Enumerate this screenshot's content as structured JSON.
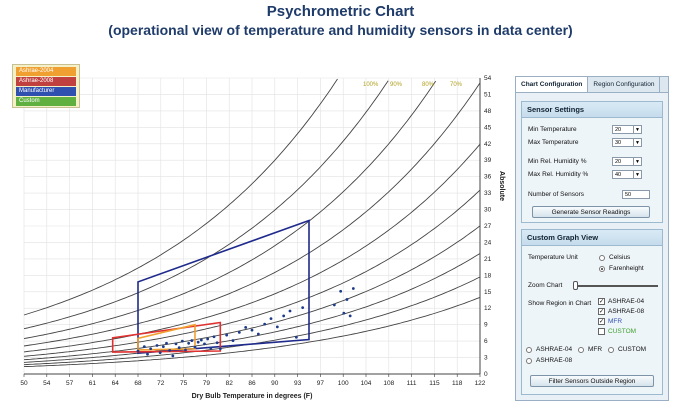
{
  "title": {
    "line1": "Psychrometric Chart",
    "line2": "(operational view of temperature and humidity sensors in data center)"
  },
  "legend": [
    {
      "label": "Ashrae-2004",
      "color": "#f0a030"
    },
    {
      "label": "Ashrae-2008",
      "color": "#c04040"
    },
    {
      "label": "Manufacturer",
      "color": "#3050b0"
    },
    {
      "label": "Custom",
      "color": "#60b040"
    }
  ],
  "chart_data": {
    "type": "scatter",
    "xlabel": "Dry Bulb Temperature in degrees (F)",
    "ylabel": "Absolute",
    "x_ticks": [
      "50",
      "54",
      "57",
      "61",
      "64",
      "68",
      "72",
      "75",
      "79",
      "82",
      "86",
      "90",
      "93",
      "97",
      "100",
      "104",
      "108",
      "111",
      "115",
      "118",
      "122"
    ],
    "y_ticks": [
      "0",
      "3",
      "6",
      "9",
      "12",
      "15",
      "18",
      "21",
      "24",
      "27",
      "30",
      "33",
      "36",
      "39",
      "42",
      "45",
      "48",
      "51",
      "54"
    ],
    "xlim": [
      50,
      122
    ],
    "ylim": [
      0,
      54
    ],
    "rh_labels": [
      "100%",
      "90%",
      "80%",
      "70%"
    ],
    "grid": true,
    "legend_position": "top-left",
    "regions": [
      {
        "name": "Manufacturer",
        "color": "#1e2a8c",
        "points": [
          [
            68,
            3.8
          ],
          [
            95,
            6.3
          ],
          [
            95,
            28
          ],
          [
            68,
            16.8
          ]
        ]
      },
      {
        "name": "Ashrae-2008",
        "color": "#e03030",
        "points": [
          [
            64,
            4.0
          ],
          [
            81,
            4.2
          ],
          [
            81,
            9.4
          ],
          [
            64,
            6.6
          ]
        ]
      },
      {
        "name": "Ashrae-2004",
        "color": "#f0a030",
        "points": [
          [
            68,
            4.4
          ],
          [
            77,
            4.6
          ],
          [
            77,
            9.0
          ],
          [
            68,
            6.5
          ]
        ]
      }
    ],
    "points": [
      [
        68,
        4.2
      ],
      [
        69,
        5.0
      ],
      [
        69.5,
        3.6
      ],
      [
        70,
        4.6
      ],
      [
        71,
        5.2
      ],
      [
        71.5,
        3.9
      ],
      [
        72,
        5.0
      ],
      [
        72.5,
        5.6
      ],
      [
        73,
        4.3
      ],
      [
        73.5,
        3.3
      ],
      [
        74,
        5.5
      ],
      [
        74.5,
        4.8
      ],
      [
        75,
        6.0
      ],
      [
        75.5,
        4.4
      ],
      [
        76,
        5.6
      ],
      [
        76.5,
        6.1
      ],
      [
        77,
        4.9
      ],
      [
        77.5,
        5.8
      ],
      [
        78,
        6.2
      ],
      [
        78.5,
        5.5
      ],
      [
        79,
        6.4
      ],
      [
        79.5,
        4.7
      ],
      [
        80,
        6.8
      ],
      [
        80.5,
        5.7
      ],
      [
        81,
        4.6
      ],
      [
        82,
        7.1
      ],
      [
        83,
        6.1
      ],
      [
        84,
        7.6
      ],
      [
        85,
        8.5
      ],
      [
        86,
        8.0
      ],
      [
        87,
        7.3
      ],
      [
        88,
        9.1
      ],
      [
        89,
        10.1
      ],
      [
        90,
        8.6
      ],
      [
        91,
        10.6
      ],
      [
        92,
        11.5
      ],
      [
        93,
        6.7
      ],
      [
        94,
        12.1
      ],
      [
        99,
        12.6
      ],
      [
        100,
        15.1
      ],
      [
        100.5,
        11.1
      ],
      [
        101,
        13.6
      ],
      [
        101.5,
        10.6
      ],
      [
        102,
        15.6
      ]
    ]
  },
  "tabs": [
    "Chart Configuration",
    "Region Configuration"
  ],
  "sensor_settings": {
    "heading": "Sensor Settings",
    "min_temp_label": "Min  Temperature",
    "min_temp_value": "20",
    "max_temp_label": "Max  Temperature",
    "max_temp_value": "30",
    "min_rh_label": "Min  Rel. Humidity %",
    "min_rh_value": "20",
    "max_rh_label": "Max  Rel. Humidity %",
    "max_rh_value": "40",
    "num_sensors_label": "Number of Sensors",
    "num_sensors_value": "50",
    "generate_button": "Generate Sensor Readings"
  },
  "custom_view": {
    "heading": "Custom Graph View",
    "temp_unit_label": "Temperature Unit",
    "celsius": "Celsius",
    "farenheight": "Farenheight",
    "zoom_label": "Zoom Chart",
    "show_region_label": "Show Region in Chart",
    "regions": [
      {
        "label": "ASHRAE-04",
        "checked": true,
        "color": "#111"
      },
      {
        "label": "ASHRAE-08",
        "checked": true,
        "color": "#111"
      },
      {
        "label": "MFR",
        "checked": true,
        "color": "#3050b0"
      },
      {
        "label": "CUSTOM",
        "checked": false,
        "color": "#40a030"
      }
    ],
    "radio_filter": [
      "ASHRAE-04",
      "MFR",
      "CUSTOM",
      "ASHRAE-08"
    ],
    "filter_button": "Filter Sensors  Outside Region"
  }
}
